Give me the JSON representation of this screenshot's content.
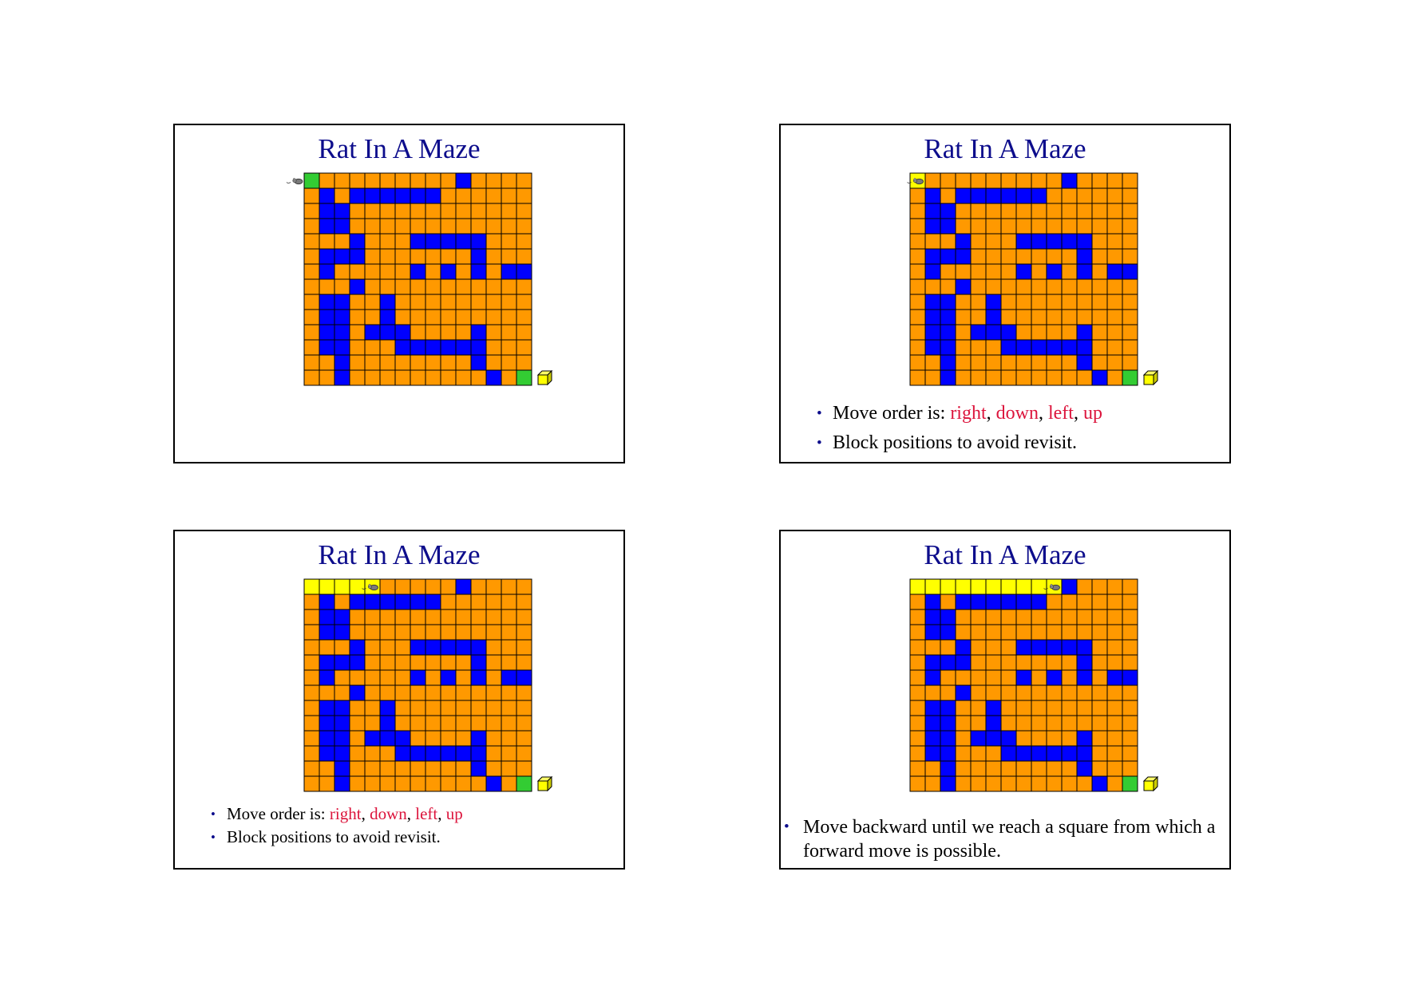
{
  "colors": {
    "title": "#0d0d8c",
    "open_cell": "#ff9900",
    "wall_cell": "#0000ff",
    "visited_cell": "#ffff00",
    "start_end_cell": "#33cc33",
    "grid_line": "#000000",
    "emphasis_text": "#dc143c",
    "bullet": "#0d0d8c"
  },
  "maze": {
    "rows": 14,
    "cols": 15,
    "layout": [
      "SOOOOOOOOOWOOOO",
      "OWOWWWWWWOOOOOO",
      "OWWOOOOOOOOOOOO",
      "OWWOOOOOOOOOOOO",
      "OOOWOOOWWWWWOOO",
      "OWWWOOOOOOOWOOO",
      "OWOOOOOWOWOWOWW",
      "OOOWOOOOOOOOOOO",
      "OWWOOWOOOOOOOOO",
      "OWWOOWOOOOOOOOO",
      "OWWOWWWOOOOWOOO",
      "OWWOOOWWWWWWOOO",
      "OOWOOOOOOOOWOOO",
      "OOWOOOOOOOOOWOE"
    ],
    "end_icon": "yellow-cube-icon",
    "rat_icon": "rat-icon"
  },
  "slides": [
    {
      "title": "Rat In A Maze",
      "visited_count": 0,
      "rat_col": -1,
      "start_highlight": true,
      "bullets": []
    },
    {
      "title": "Rat In A Maze",
      "visited_count": 1,
      "rat_col": 0,
      "start_highlight": false,
      "bullets": [
        {
          "prefix": "Move order is: ",
          "r": "right",
          "d": "down",
          "l": "left",
          "u": "up"
        },
        {
          "text": "Block positions to avoid revisit."
        }
      ]
    },
    {
      "title": "Rat In A Maze",
      "visited_count": 5,
      "rat_col": 4,
      "start_highlight": false,
      "bullets": [
        {
          "prefix": "Move order is: ",
          "r": "right",
          "d": "down",
          "l": "left",
          "u": "up"
        },
        {
          "text": "Block positions to avoid revisit."
        }
      ]
    },
    {
      "title": "Rat In A Maze",
      "visited_count": 10,
      "rat_col": 9,
      "start_highlight": false,
      "bullets": [
        {
          "text": "Move backward until we reach a square from which a forward move is possible."
        }
      ]
    }
  ],
  "bullet_symbol": "•",
  "comma": ", "
}
